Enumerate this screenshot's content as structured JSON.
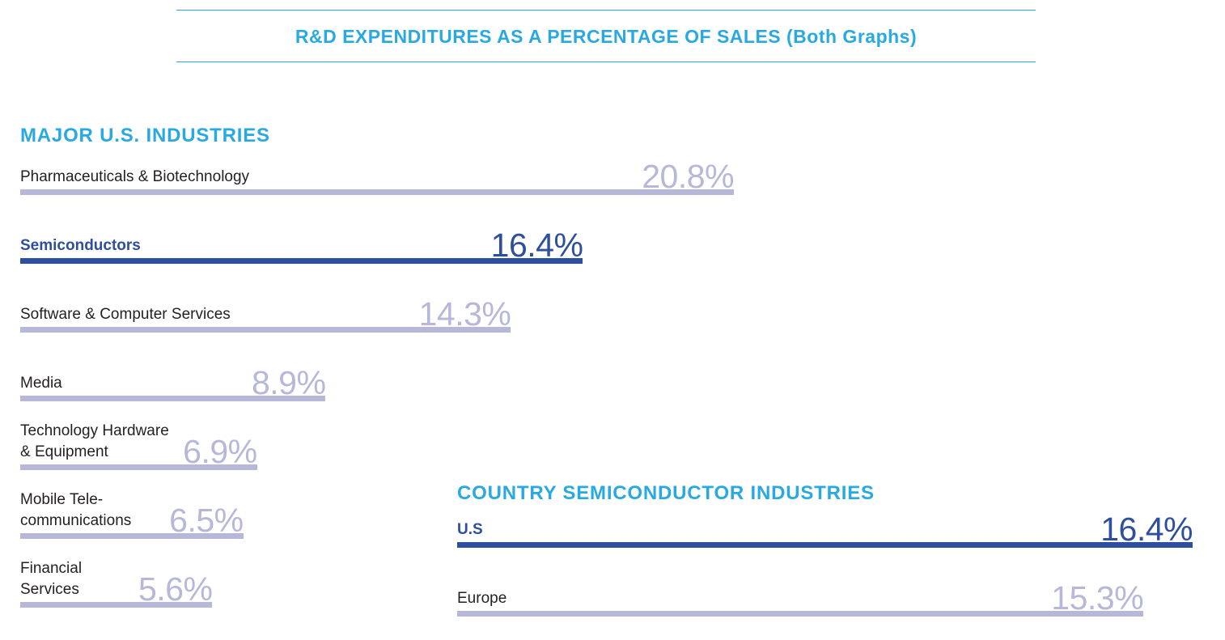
{
  "title": "R&D EXPENDITURES AS A PERCENTAGE OF SALES (Both Graphs)",
  "colors": {
    "accent": "#29a9e1",
    "highlight": "#2e4e9e",
    "muted": "#b7b7da",
    "text": "#231f20"
  },
  "chart_data": [
    {
      "type": "bar",
      "title": "MAJOR U.S. INDUSTRIES",
      "orientation": "horizontal",
      "categories": [
        "Pharmaceuticals & Biotechnology",
        "Semiconductors",
        "Software & Computer Services",
        "Media",
        "Technology Hardware\n& Equipment",
        "Mobile Tele-\ncommunications",
        "Financial\nServices"
      ],
      "values": [
        20.8,
        16.4,
        14.3,
        8.9,
        6.9,
        6.5,
        5.6
      ],
      "labels": [
        "20.8%",
        "16.4%",
        "14.3%",
        "8.9%",
        "6.9%",
        "6.5%",
        "5.6%"
      ],
      "highlight": [
        "Semiconductors"
      ]
    },
    {
      "type": "bar",
      "title": "COUNTRY SEMICONDUCTOR INDUSTRIES",
      "orientation": "horizontal",
      "categories": [
        "U.S",
        "Europe"
      ],
      "values": [
        16.4,
        15.3
      ],
      "labels": [
        "16.4%",
        "15.3%"
      ],
      "highlight": [
        "U.S"
      ]
    }
  ]
}
